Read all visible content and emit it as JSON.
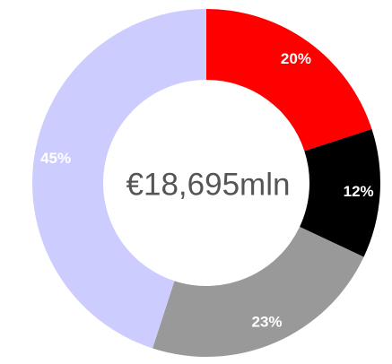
{
  "chart_data": {
    "type": "donut",
    "center_label": "€18,695mln",
    "categories": [
      null,
      null,
      null,
      null
    ],
    "values": [
      20,
      12,
      23,
      45
    ],
    "value_labels": [
      "20%",
      "12%",
      "23%",
      "45%"
    ],
    "colors": [
      "#ff0000",
      "#000000",
      "#999999",
      "#ccccff"
    ]
  }
}
